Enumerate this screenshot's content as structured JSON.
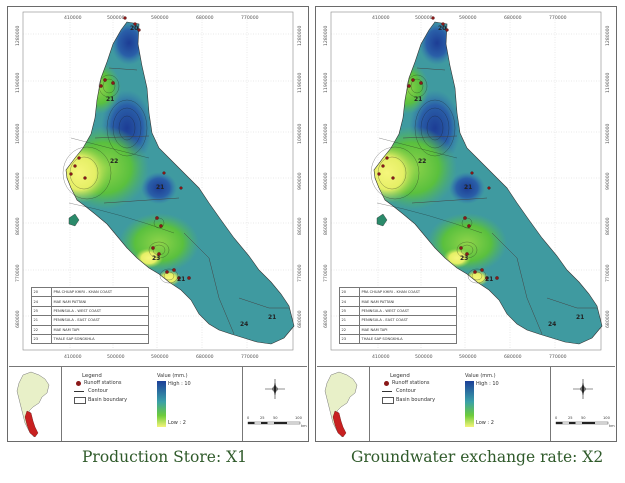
{
  "maps": [
    {
      "id": "left",
      "caption": "Production Store: X1",
      "x_ticks": [
        "410000",
        "500000",
        "590000",
        "680000",
        "770000"
      ],
      "y_ticks": [
        "1280000",
        "1190000",
        "1090000",
        "990000",
        "860000",
        "770000",
        "680000"
      ],
      "zone_labels": [
        "20",
        "21",
        "22",
        "21",
        "23",
        "21",
        "24",
        "21"
      ]
    },
    {
      "id": "right",
      "caption": "Groundwater exchange rate: X2",
      "x_ticks": [
        "410000",
        "500000",
        "590000",
        "680000",
        "770000"
      ],
      "y_ticks": [
        "1280000",
        "1190000",
        "1090000",
        "990000",
        "860000",
        "770000",
        "680000"
      ],
      "zone_labels": [
        "20",
        "21",
        "22",
        "21",
        "23",
        "21",
        "24",
        "21"
      ]
    }
  ],
  "basin_table": [
    {
      "code": "20",
      "name": "PRA CHUAP KHIRI - KHAN COAST"
    },
    {
      "code": "24",
      "name": "MAE NAM PATTANI"
    },
    {
      "code": "25",
      "name": "PENINSULA - WEST COAST"
    },
    {
      "code": "21",
      "name": "PENINSULA - EAST COAST"
    },
    {
      "code": "22",
      "name": "MAE NAM TAPI"
    },
    {
      "code": "23",
      "name": "THALE SAP SONGKHLA"
    }
  ],
  "legend": {
    "title": "Legend",
    "runoff_stations": "Runoff stations",
    "contour": "Contour",
    "basin_boundary": "Basin boundary",
    "value_title": "Value (mm.)",
    "high": "High : 10",
    "low": "Low : 2"
  },
  "scale_bar": {
    "ticks": [
      "0",
      "25",
      "50",
      "100"
    ],
    "unit": "km"
  },
  "colors": {
    "high": "#1c3f98",
    "mid_blue": "#2f7fb8",
    "teal": "#3f9aa0",
    "green": "#58bf3a",
    "low": "#f4f47a",
    "station": "#8a1818",
    "inset_region": "#c82020"
  }
}
